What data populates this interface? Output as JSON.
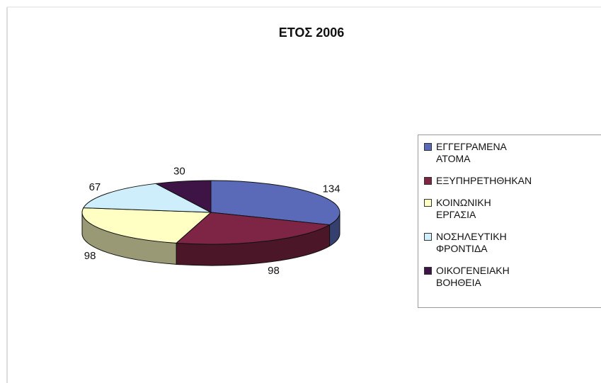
{
  "chart_data": {
    "type": "pie",
    "title": "ΕΤΟΣ 2006",
    "categories": [
      "ΕΓΓΕΓΡΑΜΕΝΑ ΑΤΟΜΑ",
      "ΕΞΥΠΗΡΕΤΗΘΗΚΑΝ",
      "ΚΟΙΝΩΝΙΚΗ ΕΡΓΑΣΙΑ",
      "ΝΟΣΗΛΕΥΤΙΚΗ ΦΡΟΝΤΙΔΑ",
      "ΟΙΚΟΓΕΝΕΙΑΚΗ ΒΟΗΘΕΙΑ"
    ],
    "values": [
      134,
      98,
      98,
      67,
      30
    ],
    "colors": [
      "#5a6ab8",
      "#7e2444",
      "#ffffc4",
      "#cdeefa",
      "#3e1446"
    ],
    "legend": "right"
  }
}
